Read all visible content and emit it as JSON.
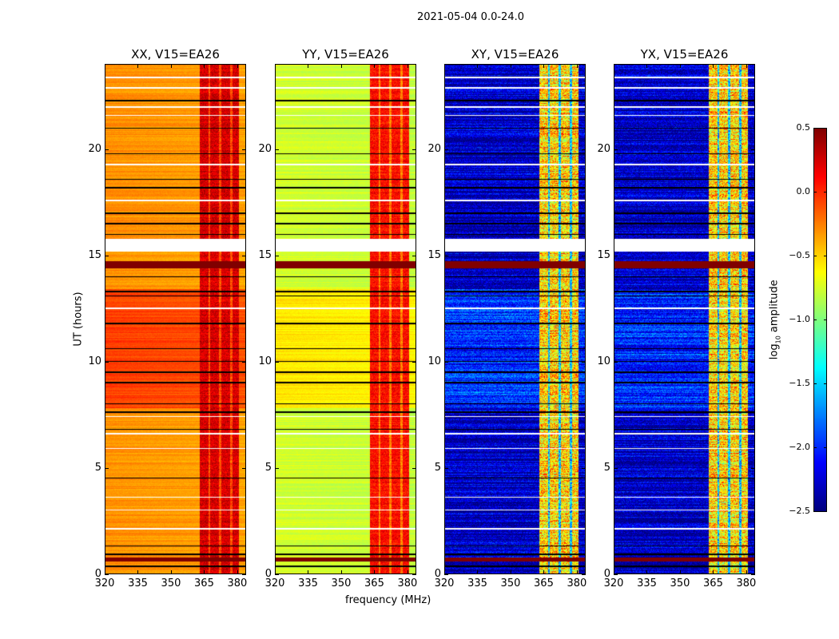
{
  "suptitle": "2021-05-04 0.0-24.0",
  "chart_data": {
    "type": "heatmap",
    "xlabel": "frequency (MHz)",
    "ylabel": "UT (hours)",
    "xlim": [
      320,
      384
    ],
    "ylim": [
      0,
      24
    ],
    "xticks": [
      "320",
      "335",
      "350",
      "365",
      "380"
    ],
    "xtick_values": [
      320,
      335,
      350,
      365,
      380
    ],
    "yticks": [
      "0",
      "5",
      "10",
      "15",
      "20"
    ],
    "ytick_values": [
      0,
      5,
      10,
      15,
      20
    ],
    "colormap": "jet",
    "colorbar": {
      "label_prefix": "log",
      "label_sub": "10",
      "label_suffix": " amplitude",
      "range": [
        -2.5,
        0.5
      ],
      "ticks": [
        "0.5",
        "0.0",
        "−0.5",
        "−1.0",
        "−1.5",
        "−2.0",
        "−2.5"
      ],
      "tick_values": [
        0.5,
        0.0,
        -0.5,
        -1.0,
        -1.5,
        -2.0,
        -2.5
      ]
    },
    "band_MHz": [
      363,
      381
    ],
    "band_gaps_MHz": [
      367.5,
      372.5,
      377.5
    ],
    "blank_hours": [
      [
        15.2,
        15.8
      ]
    ],
    "saturated_hours": [
      [
        14.4,
        14.75
      ],
      [
        0.55,
        0.75
      ]
    ],
    "flag_lines_hours": [
      0.35,
      0.9,
      1.3,
      4.5,
      6.8,
      7.6,
      8.0,
      9.0,
      9.5,
      10.0,
      10.6,
      11.8,
      13.1,
      13.3,
      14.0,
      16.0,
      16.5,
      17.0,
      18.2,
      18.6,
      19.8,
      21.0,
      22.3
    ],
    "white_lines_hours": [
      2.1,
      3.0,
      3.6,
      5.9,
      6.6,
      7.4,
      12.5,
      17.6,
      19.3,
      21.6,
      22.0,
      22.9,
      23.4
    ],
    "panels": [
      {
        "title": "XX, V15=EA26",
        "background_level": -0.3,
        "mid_hours_level": -0.05,
        "band_level": 0.25
      },
      {
        "title": "YY, V15=EA26",
        "background_level": -0.75,
        "mid_hours_level": -0.55,
        "band_level": 0.1
      },
      {
        "title": "XY, V15=EA26",
        "background_level": -2.3,
        "mid_hours_level": -2.0,
        "band_level": -0.5
      },
      {
        "title": "YX, V15=EA26",
        "background_level": -2.3,
        "mid_hours_level": -2.0,
        "band_level": -0.5
      }
    ]
  }
}
